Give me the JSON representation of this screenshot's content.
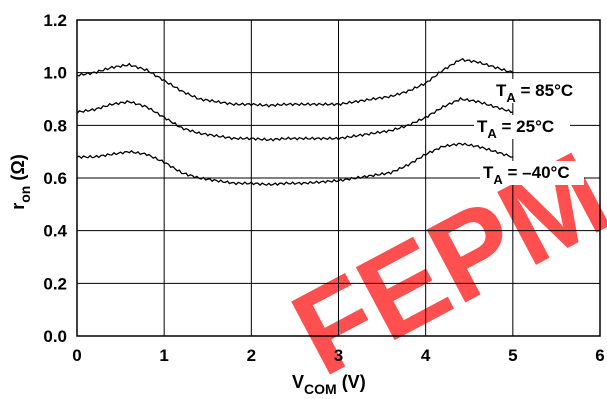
{
  "chart_data": {
    "type": "line",
    "title": "",
    "xlabel": {
      "main": "V",
      "sub": "COM",
      "rest": " (V)"
    },
    "ylabel": {
      "main": "r",
      "sub": "on",
      "rest": " (Ω)"
    },
    "xlim": [
      0,
      6
    ],
    "ylim": [
      0.0,
      1.2
    ],
    "grid": true,
    "legend": "none",
    "x_ticks": [
      "0",
      "1",
      "2",
      "3",
      "4",
      "5",
      "6"
    ],
    "y_ticks": [
      "0.0",
      "0.2",
      "0.4",
      "0.6",
      "0.8",
      "1.0",
      "1.2"
    ],
    "series": [
      {
        "name": "T_A = 85°C",
        "label": {
          "main": "T",
          "sub": "A",
          "rest": " = 85°C"
        },
        "x": [
          0,
          0.2,
          0.4,
          0.6,
          0.8,
          1.0,
          1.2,
          1.4,
          1.6,
          1.8,
          2.0,
          2.2,
          2.4,
          2.6,
          2.8,
          3.0,
          3.2,
          3.4,
          3.6,
          3.8,
          4.0,
          4.2,
          4.4,
          4.6,
          4.8,
          5.0
        ],
        "values": [
          0.99,
          1.0,
          1.02,
          1.03,
          1.01,
          0.97,
          0.93,
          0.9,
          0.89,
          0.88,
          0.88,
          0.875,
          0.88,
          0.88,
          0.88,
          0.88,
          0.89,
          0.9,
          0.91,
          0.93,
          0.96,
          1.01,
          1.05,
          1.04,
          1.02,
          1.0
        ]
      },
      {
        "name": "T_A = 25°C",
        "label": {
          "main": "T",
          "sub": "A",
          "rest": " = 25°C"
        },
        "x": [
          0,
          0.2,
          0.4,
          0.6,
          0.8,
          1.0,
          1.2,
          1.4,
          1.6,
          1.8,
          2.0,
          2.2,
          2.4,
          2.6,
          2.8,
          3.0,
          3.2,
          3.4,
          3.6,
          3.8,
          4.0,
          4.2,
          4.4,
          4.6,
          4.8,
          5.0
        ],
        "values": [
          0.85,
          0.86,
          0.88,
          0.89,
          0.87,
          0.83,
          0.79,
          0.77,
          0.76,
          0.75,
          0.75,
          0.745,
          0.75,
          0.75,
          0.75,
          0.75,
          0.76,
          0.77,
          0.78,
          0.8,
          0.83,
          0.87,
          0.9,
          0.89,
          0.87,
          0.85
        ]
      },
      {
        "name": "T_A = –40°C",
        "label": {
          "main": "T",
          "sub": "A",
          "rest": " = –40°C"
        },
        "x": [
          0,
          0.2,
          0.4,
          0.6,
          0.8,
          1.0,
          1.2,
          1.4,
          1.6,
          1.8,
          2.0,
          2.2,
          2.4,
          2.6,
          2.8,
          3.0,
          3.2,
          3.4,
          3.6,
          3.8,
          4.0,
          4.2,
          4.4,
          4.6,
          4.8,
          5.0
        ],
        "values": [
          0.68,
          0.68,
          0.69,
          0.7,
          0.69,
          0.66,
          0.62,
          0.6,
          0.59,
          0.58,
          0.58,
          0.575,
          0.58,
          0.58,
          0.585,
          0.59,
          0.6,
          0.61,
          0.62,
          0.65,
          0.69,
          0.72,
          0.73,
          0.72,
          0.7,
          0.68
        ]
      }
    ],
    "watermark": "FEPM",
    "watermark_color": "#ff3030"
  }
}
